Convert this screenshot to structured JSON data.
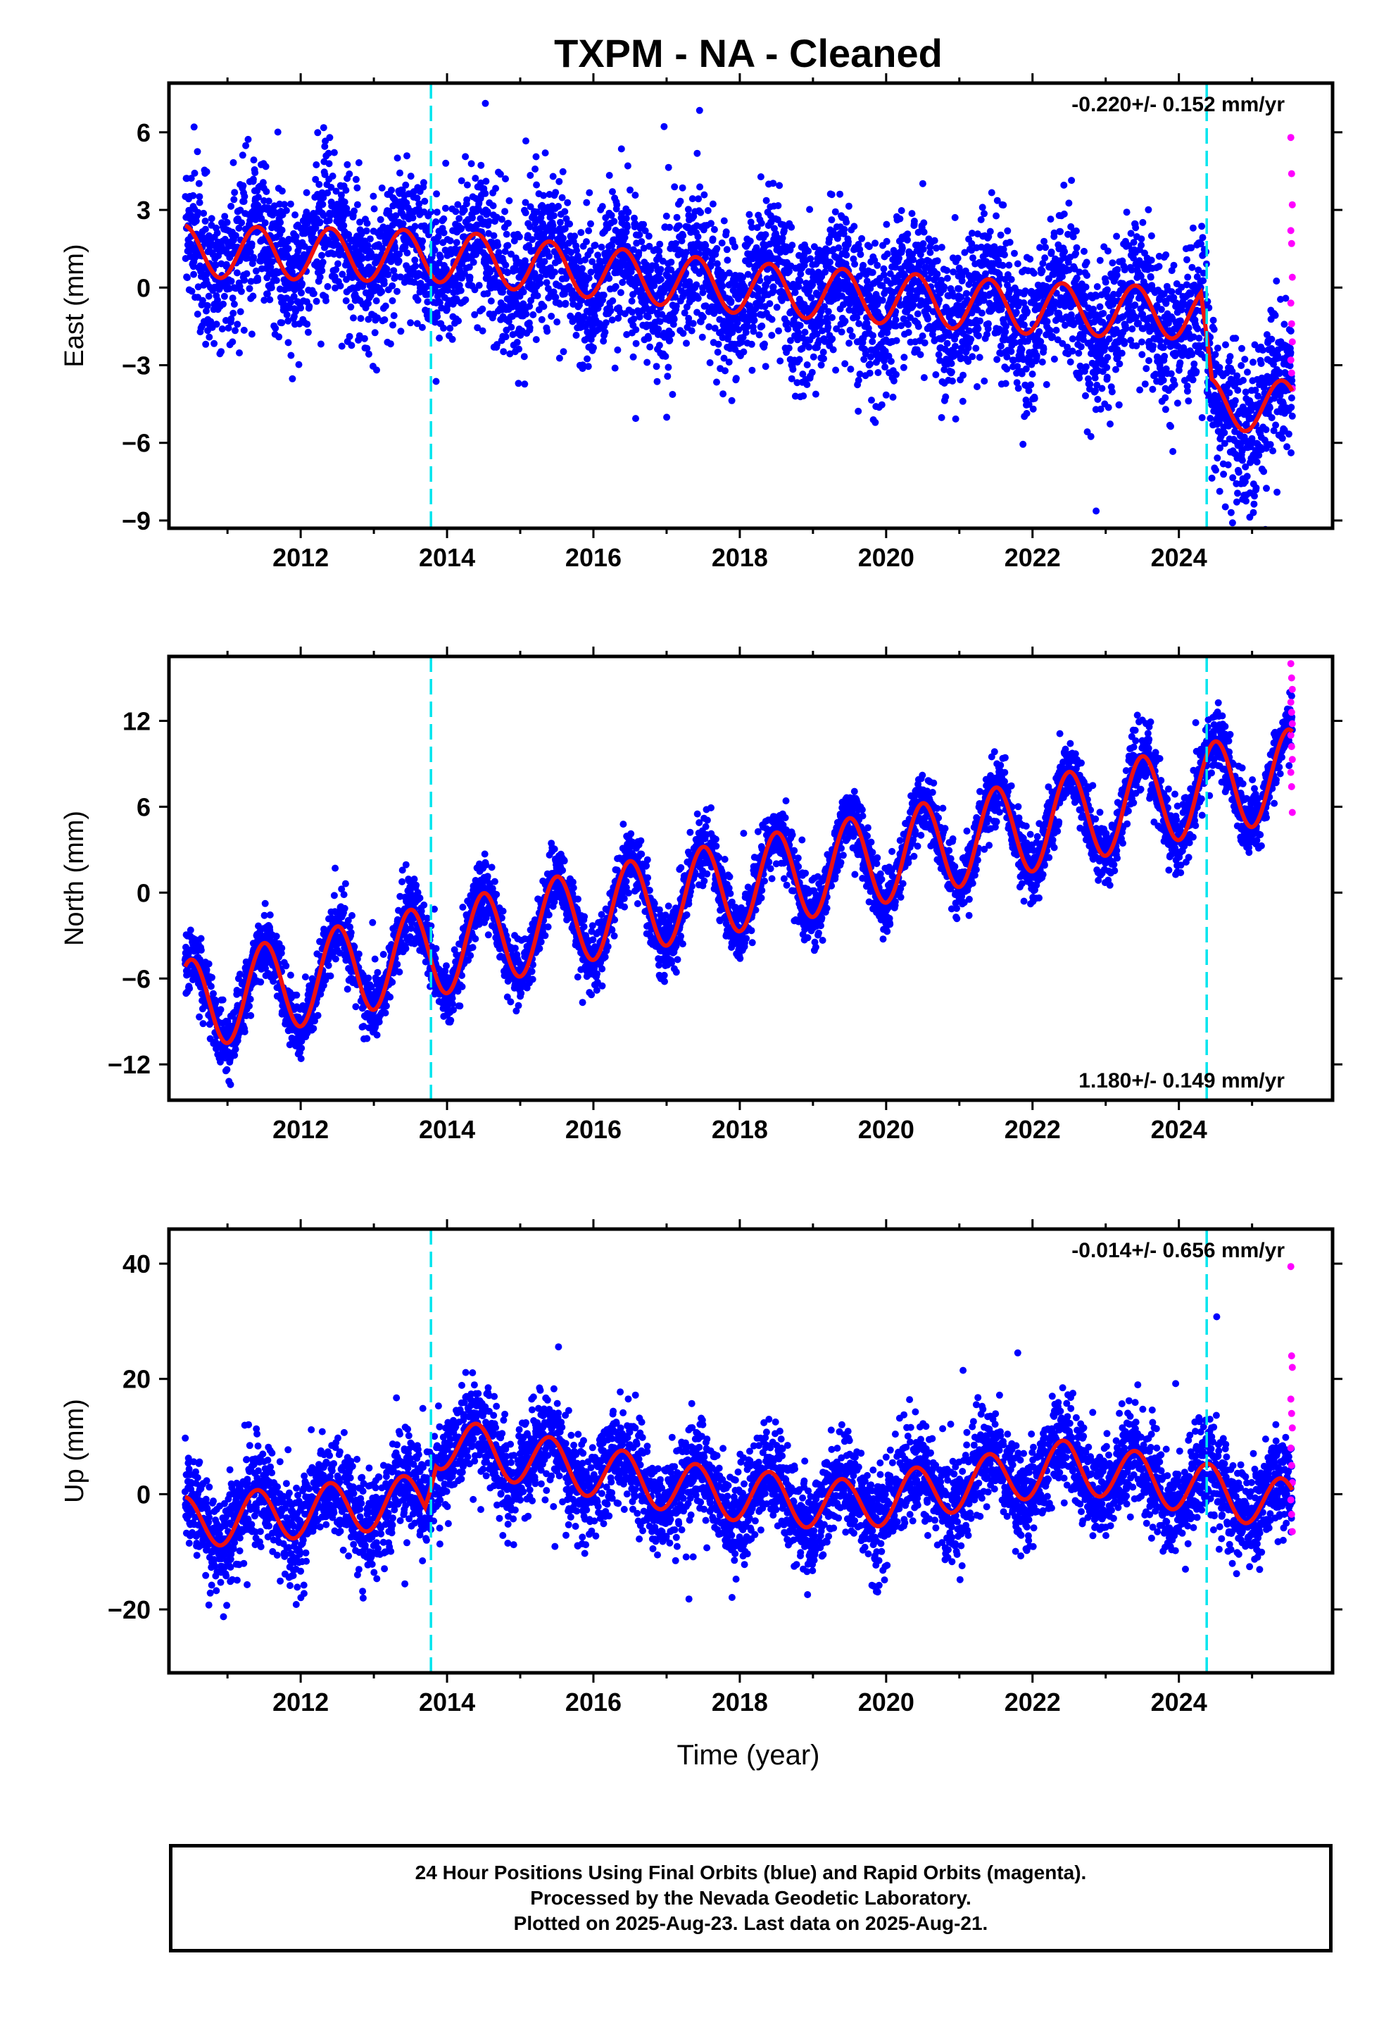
{
  "title": "TXPM  - NA - Cleaned",
  "colors": {
    "final_orbits": "#0000ff",
    "rapid_orbits": "#ff00ff",
    "model_fit": "#ee1111",
    "event_lines": "#00e5ee",
    "frame": "#000000"
  },
  "xlabel": "Time (year)",
  "x_ticks": [
    "2012",
    "2014",
    "2016",
    "2018",
    "2020",
    "2022",
    "2024"
  ],
  "event_lines_years": [
    2013.78,
    2024.38
  ],
  "chart_data": [
    {
      "type": "scatter",
      "component": "east",
      "ylabel": "East (mm)",
      "xlim": [
        2010.2,
        2026.1
      ],
      "ylim": [
        -9.3,
        7.9
      ],
      "y_ticks": [
        "6",
        "3",
        "0",
        "-3",
        "-6",
        "-9"
      ],
      "rate_text": "-0.220+/- 0.152 mm/yr",
      "rate_position": "top-right",
      "series": [
        {
          "points": "final orbits (blue) daily positions, 2010.4–2025.5",
          "trend_anchors": [
            [
              2010.4,
              1.4
            ],
            [
              2014.0,
              1.2
            ],
            [
              2018.0,
              0.0
            ],
            [
              2022.0,
              -0.8
            ],
            [
              2024.3,
              -1.0
            ],
            [
              2024.45,
              -4.5
            ],
            [
              2025.5,
              -4.6
            ]
          ],
          "seasonal_amplitude": 1.0,
          "scatter_sd": 1.4
        },
        {
          "points": "rapid orbits (magenta)",
          "values": [
            5.8,
            4.4,
            3.2,
            2.2,
            1.7,
            0.4,
            -0.6,
            -1.4,
            -2.1,
            -2.8,
            -3.3,
            -3.9
          ]
        },
        {
          "points": "model fit (red)"
        }
      ]
    },
    {
      "type": "scatter",
      "component": "north",
      "ylabel": "North (mm)",
      "xlim": [
        2010.2,
        2026.1
      ],
      "ylim": [
        -14.5,
        16.5
      ],
      "y_ticks": [
        "12",
        "6",
        "0",
        "-6",
        "-12"
      ],
      "rate_text": "1.180+/- 0.149 mm/yr",
      "rate_position": "bottom-right",
      "series": [
        {
          "points": "final orbits (blue)",
          "trend_anchors": [
            [
              2010.4,
              -8.0
            ],
            [
              2016.0,
              -1.5
            ],
            [
              2020.0,
              2.5
            ],
            [
              2024.3,
              7.2
            ],
            [
              2025.5,
              8.2
            ]
          ],
          "seasonal_amplitude": 3.2,
          "scatter_sd": 1.1
        },
        {
          "points": "rapid orbits (magenta)",
          "values": [
            16.0,
            15.0,
            14.2,
            13.3,
            12.6,
            11.8,
            11.0,
            10.2,
            9.3,
            8.4,
            7.4,
            5.6
          ]
        },
        {
          "points": "model fit (red)"
        }
      ]
    },
    {
      "type": "scatter",
      "component": "up",
      "ylabel": "Up (mm)",
      "xlim": [
        2010.2,
        2026.1
      ],
      "ylim": [
        -31,
        46
      ],
      "y_ticks": [
        "40",
        "20",
        "0",
        "-20"
      ],
      "rate_text": "-0.014+/- 0.656 mm/yr",
      "rate_position": "top-right",
      "series": [
        {
          "points": "final orbits (blue)",
          "trend_anchors": [
            [
              2010.4,
              -5.0
            ],
            [
              2013.7,
              -1.0
            ],
            [
              2013.85,
              9.0
            ],
            [
              2017.5,
              0.5
            ],
            [
              2019.5,
              -2.0
            ],
            [
              2022.5,
              5.0
            ],
            [
              2024.3,
              1.0
            ],
            [
              2025.5,
              -2.0
            ]
          ],
          "seasonal_amplitude": 4.5,
          "scatter_sd": 4.2
        },
        {
          "points": "rapid orbits (magenta)",
          "values": [
            39.5,
            24.0,
            22.0,
            16.5,
            14.0,
            11.5,
            8.0,
            5.0,
            2.0,
            -1.0,
            -3.5,
            -6.5
          ]
        },
        {
          "points": "model fit (red)"
        }
      ]
    }
  ],
  "footer": {
    "line1": "24 Hour Positions Using Final Orbits (blue) and Rapid Orbits (magenta).",
    "line2": "Processed by the Nevada Geodetic Laboratory.",
    "line3": "Plotted on 2025-Aug-23. Last data on 2025-Aug-21."
  }
}
